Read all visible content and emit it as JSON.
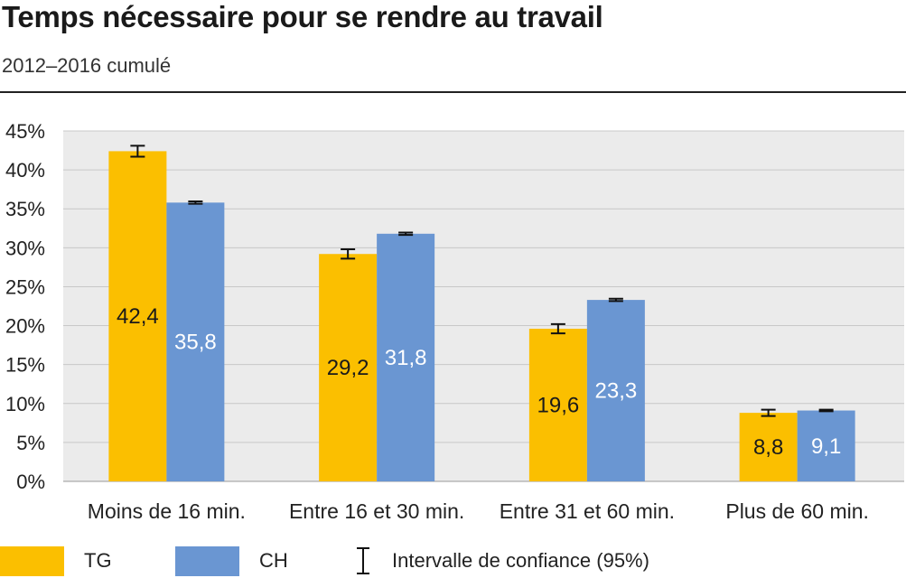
{
  "title": "Temps nécessaire pour se rendre au travail",
  "subtitle": "2012–2016 cumulé",
  "colors": {
    "tg": "#fbbf00",
    "ch": "#6a96d2",
    "plot_bg": "#ebebeb"
  },
  "legend": {
    "tg": "TG",
    "ch": "CH",
    "ci": "Intervalle de confiance (95%)"
  },
  "chart_data": {
    "type": "bar",
    "title": "Temps nécessaire pour se rendre au travail",
    "subtitle": "2012–2016 cumulé",
    "categories": [
      "Moins de 16 min.",
      "Entre 16 et 30 min.",
      "Entre 31 et 60 min.",
      "Plus de 60 min."
    ],
    "series": [
      {
        "name": "TG",
        "values": [
          42.4,
          29.2,
          19.6,
          8.8
        ],
        "labels": [
          "42,4",
          "29,2",
          "19,6",
          "8,8"
        ],
        "ci": [
          0.7,
          0.6,
          0.6,
          0.4
        ]
      },
      {
        "name": "CH",
        "values": [
          35.8,
          31.8,
          23.3,
          9.1
        ],
        "labels": [
          "35,8",
          "31,8",
          "23,3",
          "9,1"
        ],
        "ci": [
          0.15,
          0.15,
          0.15,
          0.1
        ]
      }
    ],
    "ylim": [
      0,
      45
    ],
    "yticks": [
      "0%",
      "5%",
      "10%",
      "15%",
      "20%",
      "25%",
      "30%",
      "35%",
      "40%",
      "45%"
    ],
    "grid": true,
    "legend_position": "bottom"
  }
}
